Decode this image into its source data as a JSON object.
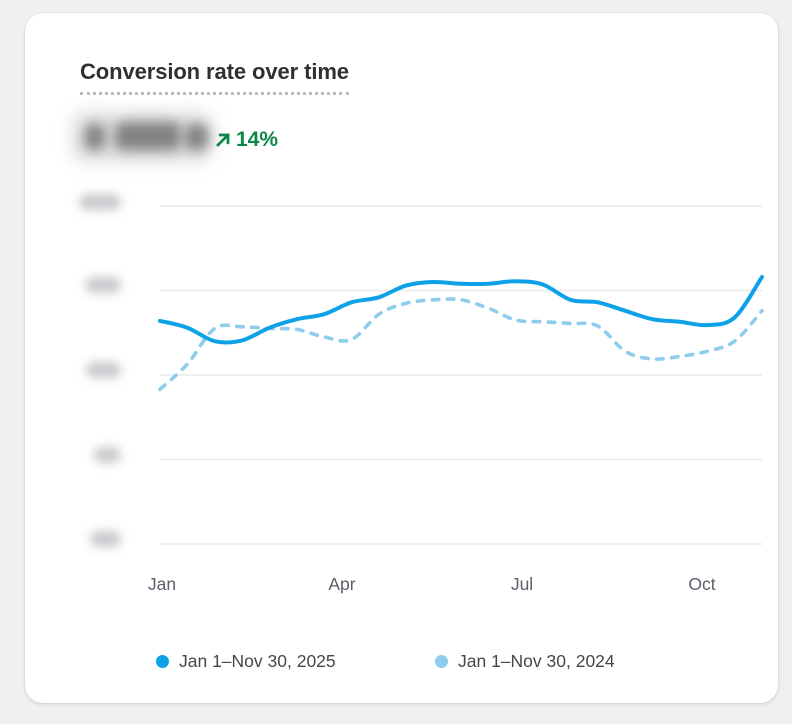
{
  "card": {
    "title": "Conversion rate over time",
    "metric": {
      "value_redacted": true,
      "change": "14%",
      "trend": "up",
      "trend_icon": "arrow-up-right"
    }
  },
  "colors": {
    "series_2025": "#0da2e7",
    "series_2024": "#8ecdec",
    "change_green": "#0b8648",
    "gridline": "#e9eaeb",
    "axis_text": "#5b5f6a",
    "legend_text": "#45474d",
    "title_text": "#2e3032",
    "card_bg": "#ffffff",
    "page_bg": "#f0f0f1"
  },
  "chart_data": {
    "type": "line",
    "title": "Conversion rate over time",
    "x_ticks": [
      "Jan",
      "Apr",
      "Jul",
      "Oct"
    ],
    "x_span": "Jan 1 – Nov 30",
    "y_unit": "%",
    "y_ticks_redacted": true,
    "y_gridlines": 5,
    "ylim": [
      0,
      4
    ],
    "grid": true,
    "legend_position": "bottom",
    "series": [
      {
        "name": "Jan 1–Nov 30, 2025",
        "style": "solid",
        "color": "#0da2e7",
        "values": [
          2.64,
          2.56,
          2.4,
          2.41,
          2.56,
          2.66,
          2.72,
          2.86,
          2.92,
          3.06,
          3.1,
          3.08,
          3.08,
          3.11,
          3.07,
          2.89,
          2.86,
          2.76,
          2.66,
          2.63,
          2.59,
          2.68,
          3.16
        ]
      },
      {
        "name": "Jan 1–Nov 30, 2024",
        "style": "dashed",
        "color": "#8ecdec",
        "values": [
          1.83,
          2.13,
          2.55,
          2.57,
          2.55,
          2.54,
          2.45,
          2.42,
          2.72,
          2.85,
          2.89,
          2.89,
          2.79,
          2.65,
          2.63,
          2.61,
          2.58,
          2.28,
          2.19,
          2.22,
          2.28,
          2.4,
          2.76
        ]
      }
    ]
  },
  "legend": {
    "items": [
      {
        "label": "Jan 1–Nov 30, 2025",
        "color": "#0da2e7"
      },
      {
        "label": "Jan 1–Nov 30, 2024",
        "color": "#8ecdec"
      }
    ]
  }
}
